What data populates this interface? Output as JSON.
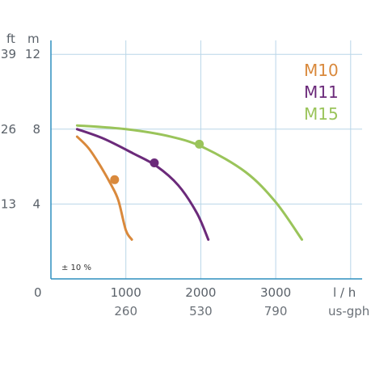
{
  "chart_data": {
    "type": "line",
    "x_unit": "l / h",
    "y_unit_left": "ft",
    "y_unit_right": "m",
    "secondary_x_unit": "us-gph",
    "x_ticks": [
      0,
      1000,
      2000,
      3000
    ],
    "y_ticks": [
      4,
      8,
      12
    ],
    "ft_tick_labels": [
      "13",
      "26",
      "39"
    ],
    "gph_tick_labels": [
      "260",
      "530",
      "790"
    ],
    "xlim": [
      0,
      4000
    ],
    "ylim": [
      0,
      12
    ],
    "grid": true,
    "legend_position": "top-right",
    "note": "± 10 %",
    "series": [
      {
        "name": "M10",
        "color": "#d9893c",
        "x": [
          350,
          500,
          650,
          800,
          900,
          1000,
          1080
        ],
        "y": [
          7.6,
          7.0,
          6.1,
          5.05,
          4.2,
          2.6,
          2.1
        ],
        "marker": {
          "x": 850,
          "y": 5.3
        }
      },
      {
        "name": "M11",
        "color": "#6b2a7a",
        "x": [
          350,
          700,
          1100,
          1400,
          1700,
          1950,
          2100
        ],
        "y": [
          8.0,
          7.5,
          6.7,
          6.05,
          5.0,
          3.5,
          2.1
        ],
        "marker": {
          "x": 1380,
          "y": 6.2
        }
      },
      {
        "name": "M15",
        "color": "#9ac45a",
        "x": [
          350,
          1000,
          1600,
          2050,
          2600,
          3000,
          3350
        ],
        "y": [
          8.2,
          8.0,
          7.6,
          7.0,
          5.7,
          4.1,
          2.1
        ],
        "marker": {
          "x": 1980,
          "y": 7.2
        }
      }
    ]
  }
}
